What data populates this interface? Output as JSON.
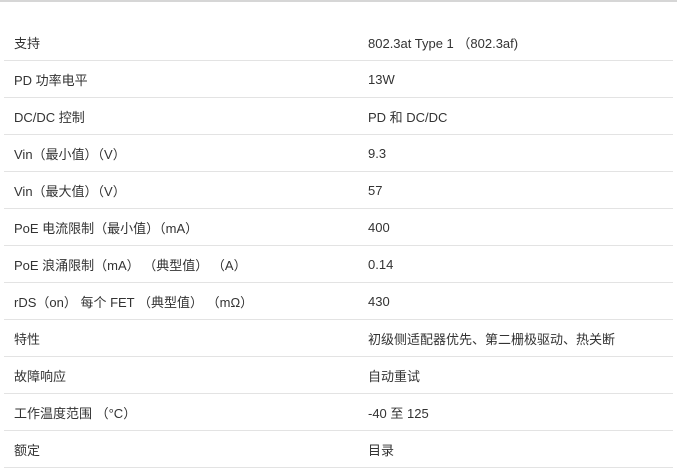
{
  "rows": [
    {
      "label": "支持",
      "value": "802.3at Type 1 （802.3af)"
    },
    {
      "label": "PD 功率电平",
      "value": "13W"
    },
    {
      "label": "DC/DC 控制",
      "value": "PD 和 DC/DC"
    },
    {
      "label": "Vin（最小值）（V）",
      "value": "9.3"
    },
    {
      "label": "Vin（最大值）（V）",
      "value": "57"
    },
    {
      "label": "PoE 电流限制（最小值）（mA）",
      "value": "400"
    },
    {
      "label": "PoE 浪涌限制（mA） （典型值） （A）",
      "value": "0.14"
    },
    {
      "label": "rDS（on） 每个 FET （典型值） （mΩ）",
      "value": "430"
    },
    {
      "label": "特性",
      "value": "初级侧适配器优先、第二栅极驱动、热关断"
    },
    {
      "label": "故障响应",
      "value": "自动重试"
    },
    {
      "label": "工作温度范围 （°C）",
      "value": "-40 至 125"
    },
    {
      "label": "额定",
      "value": "目录"
    }
  ]
}
